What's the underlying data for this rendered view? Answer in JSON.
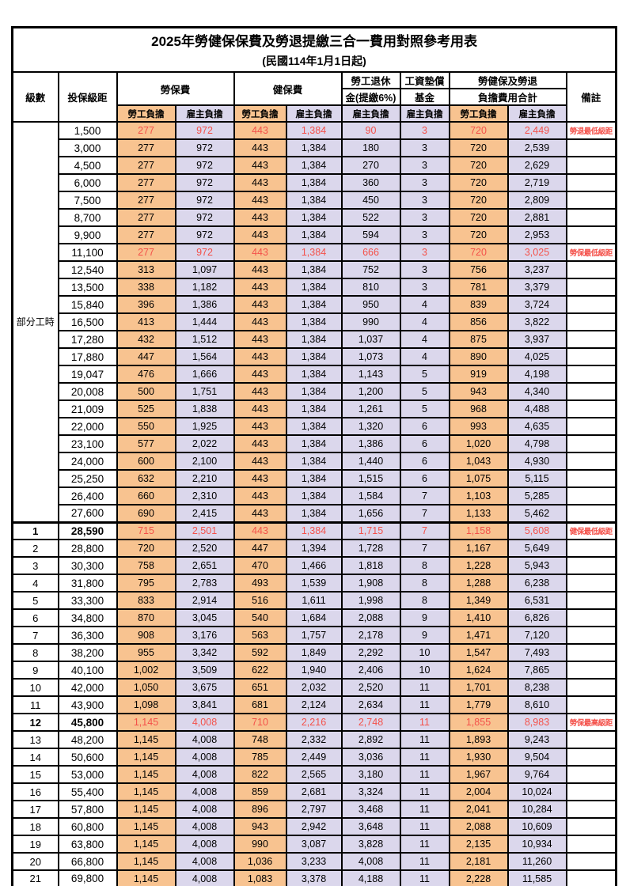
{
  "title": "2025年勞健保保費及勞退提繳三合一費用對照參考用表",
  "subtitle": "(民國114年1月1日起)",
  "colors": {
    "employee_column_bg": "#F8C390",
    "employer_column_bg": "#DBD7EC",
    "highlight_text": "#F4514A",
    "border": "#000000"
  },
  "header": {
    "level": "級數",
    "bracket": "投保級距",
    "labor_fee": "勞保費",
    "health_fee": "健保費",
    "pension_line1": "勞工退休",
    "pension_line2": "金(提繳6%)",
    "wage_fund_line1": "工資墊償",
    "wage_fund_line2": "基金",
    "total_line1": "勞健保及勞退",
    "total_line2": "負擔費用合計",
    "remark": "備註",
    "employee_label": "勞工負擔",
    "employer_label": "雇主負擔"
  },
  "part_time_label": "部分工時",
  "part_time_row_count": 23,
  "table": {
    "rows": [
      {
        "level": "",
        "bracket": "1,500",
        "values": [
          "277",
          "972",
          "443",
          "1,384",
          "90",
          "3",
          "720",
          "2,449"
        ],
        "note": "勞退最低級距",
        "red": true,
        "bold": false,
        "section": false
      },
      {
        "level": "",
        "bracket": "3,000",
        "values": [
          "277",
          "972",
          "443",
          "1,384",
          "180",
          "3",
          "720",
          "2,539"
        ],
        "note": "",
        "red": false,
        "bold": false,
        "section": false
      },
      {
        "level": "",
        "bracket": "4,500",
        "values": [
          "277",
          "972",
          "443",
          "1,384",
          "270",
          "3",
          "720",
          "2,629"
        ],
        "note": "",
        "red": false,
        "bold": false,
        "section": false
      },
      {
        "level": "",
        "bracket": "6,000",
        "values": [
          "277",
          "972",
          "443",
          "1,384",
          "360",
          "3",
          "720",
          "2,719"
        ],
        "note": "",
        "red": false,
        "bold": false,
        "section": false
      },
      {
        "level": "",
        "bracket": "7,500",
        "values": [
          "277",
          "972",
          "443",
          "1,384",
          "450",
          "3",
          "720",
          "2,809"
        ],
        "note": "",
        "red": false,
        "bold": false,
        "section": false
      },
      {
        "level": "",
        "bracket": "8,700",
        "values": [
          "277",
          "972",
          "443",
          "1,384",
          "522",
          "3",
          "720",
          "2,881"
        ],
        "note": "",
        "red": false,
        "bold": false,
        "section": false
      },
      {
        "level": "",
        "bracket": "9,900",
        "values": [
          "277",
          "972",
          "443",
          "1,384",
          "594",
          "3",
          "720",
          "2,953"
        ],
        "note": "",
        "red": false,
        "bold": false,
        "section": false
      },
      {
        "level": "",
        "bracket": "11,100",
        "values": [
          "277",
          "972",
          "443",
          "1,384",
          "666",
          "3",
          "720",
          "3,025"
        ],
        "note": "勞保最低級距",
        "red": true,
        "bold": false,
        "section": false
      },
      {
        "level": "",
        "bracket": "12,540",
        "values": [
          "313",
          "1,097",
          "443",
          "1,384",
          "752",
          "3",
          "756",
          "3,237"
        ],
        "note": "",
        "red": false,
        "bold": false,
        "section": false
      },
      {
        "level": "",
        "bracket": "13,500",
        "values": [
          "338",
          "1,182",
          "443",
          "1,384",
          "810",
          "3",
          "781",
          "3,379"
        ],
        "note": "",
        "red": false,
        "bold": false,
        "section": false
      },
      {
        "level": "",
        "bracket": "15,840",
        "values": [
          "396",
          "1,386",
          "443",
          "1,384",
          "950",
          "4",
          "839",
          "3,724"
        ],
        "note": "",
        "red": false,
        "bold": false,
        "section": false
      },
      {
        "level": "",
        "bracket": "16,500",
        "values": [
          "413",
          "1,444",
          "443",
          "1,384",
          "990",
          "4",
          "856",
          "3,822"
        ],
        "note": "",
        "red": false,
        "bold": false,
        "section": false
      },
      {
        "level": "",
        "bracket": "17,280",
        "values": [
          "432",
          "1,512",
          "443",
          "1,384",
          "1,037",
          "4",
          "875",
          "3,937"
        ],
        "note": "",
        "red": false,
        "bold": false,
        "section": false
      },
      {
        "level": "",
        "bracket": "17,880",
        "values": [
          "447",
          "1,564",
          "443",
          "1,384",
          "1,073",
          "4",
          "890",
          "4,025"
        ],
        "note": "",
        "red": false,
        "bold": false,
        "section": false
      },
      {
        "level": "",
        "bracket": "19,047",
        "values": [
          "476",
          "1,666",
          "443",
          "1,384",
          "1,143",
          "5",
          "919",
          "4,198"
        ],
        "note": "",
        "red": false,
        "bold": false,
        "section": false
      },
      {
        "level": "",
        "bracket": "20,008",
        "values": [
          "500",
          "1,751",
          "443",
          "1,384",
          "1,200",
          "5",
          "943",
          "4,340"
        ],
        "note": "",
        "red": false,
        "bold": false,
        "section": false
      },
      {
        "level": "",
        "bracket": "21,009",
        "values": [
          "525",
          "1,838",
          "443",
          "1,384",
          "1,261",
          "5",
          "968",
          "4,488"
        ],
        "note": "",
        "red": false,
        "bold": false,
        "section": false
      },
      {
        "level": "",
        "bracket": "22,000",
        "values": [
          "550",
          "1,925",
          "443",
          "1,384",
          "1,320",
          "6",
          "993",
          "4,635"
        ],
        "note": "",
        "red": false,
        "bold": false,
        "section": false
      },
      {
        "level": "",
        "bracket": "23,100",
        "values": [
          "577",
          "2,022",
          "443",
          "1,384",
          "1,386",
          "6",
          "1,020",
          "4,798"
        ],
        "note": "",
        "red": false,
        "bold": false,
        "section": false
      },
      {
        "level": "",
        "bracket": "24,000",
        "values": [
          "600",
          "2,100",
          "443",
          "1,384",
          "1,440",
          "6",
          "1,043",
          "4,930"
        ],
        "note": "",
        "red": false,
        "bold": false,
        "section": false
      },
      {
        "level": "",
        "bracket": "25,250",
        "values": [
          "632",
          "2,210",
          "443",
          "1,384",
          "1,515",
          "6",
          "1,075",
          "5,115"
        ],
        "note": "",
        "red": false,
        "bold": false,
        "section": false
      },
      {
        "level": "",
        "bracket": "26,400",
        "values": [
          "660",
          "2,310",
          "443",
          "1,384",
          "1,584",
          "7",
          "1,103",
          "5,285"
        ],
        "note": "",
        "red": false,
        "bold": false,
        "section": false
      },
      {
        "level": "",
        "bracket": "27,600",
        "values": [
          "690",
          "2,415",
          "443",
          "1,384",
          "1,656",
          "7",
          "1,133",
          "5,462"
        ],
        "note": "",
        "red": false,
        "bold": false,
        "section": false
      },
      {
        "level": "1",
        "bracket": "28,590",
        "values": [
          "715",
          "2,501",
          "443",
          "1,384",
          "1,715",
          "7",
          "1,158",
          "5,608"
        ],
        "note": "健保最低級距",
        "red": true,
        "bold": true,
        "section": true
      },
      {
        "level": "2",
        "bracket": "28,800",
        "values": [
          "720",
          "2,520",
          "447",
          "1,394",
          "1,728",
          "7",
          "1,167",
          "5,649"
        ],
        "note": "",
        "red": false,
        "bold": false,
        "section": false
      },
      {
        "level": "3",
        "bracket": "30,300",
        "values": [
          "758",
          "2,651",
          "470",
          "1,466",
          "1,818",
          "8",
          "1,228",
          "5,943"
        ],
        "note": "",
        "red": false,
        "bold": false,
        "section": false
      },
      {
        "level": "4",
        "bracket": "31,800",
        "values": [
          "795",
          "2,783",
          "493",
          "1,539",
          "1,908",
          "8",
          "1,288",
          "6,238"
        ],
        "note": "",
        "red": false,
        "bold": false,
        "section": false
      },
      {
        "level": "5",
        "bracket": "33,300",
        "values": [
          "833",
          "2,914",
          "516",
          "1,611",
          "1,998",
          "8",
          "1,349",
          "6,531"
        ],
        "note": "",
        "red": false,
        "bold": false,
        "section": false
      },
      {
        "level": "6",
        "bracket": "34,800",
        "values": [
          "870",
          "3,045",
          "540",
          "1,684",
          "2,088",
          "9",
          "1,410",
          "6,826"
        ],
        "note": "",
        "red": false,
        "bold": false,
        "section": false
      },
      {
        "level": "7",
        "bracket": "36,300",
        "values": [
          "908",
          "3,176",
          "563",
          "1,757",
          "2,178",
          "9",
          "1,471",
          "7,120"
        ],
        "note": "",
        "red": false,
        "bold": false,
        "section": false
      },
      {
        "level": "8",
        "bracket": "38,200",
        "values": [
          "955",
          "3,342",
          "592",
          "1,849",
          "2,292",
          "10",
          "1,547",
          "7,493"
        ],
        "note": "",
        "red": false,
        "bold": false,
        "section": false
      },
      {
        "level": "9",
        "bracket": "40,100",
        "values": [
          "1,002",
          "3,509",
          "622",
          "1,940",
          "2,406",
          "10",
          "1,624",
          "7,865"
        ],
        "note": "",
        "red": false,
        "bold": false,
        "section": false
      },
      {
        "level": "10",
        "bracket": "42,000",
        "values": [
          "1,050",
          "3,675",
          "651",
          "2,032",
          "2,520",
          "11",
          "1,701",
          "8,238"
        ],
        "note": "",
        "red": false,
        "bold": false,
        "section": false
      },
      {
        "level": "11",
        "bracket": "43,900",
        "values": [
          "1,098",
          "3,841",
          "681",
          "2,124",
          "2,634",
          "11",
          "1,779",
          "8,610"
        ],
        "note": "",
        "red": false,
        "bold": false,
        "section": false
      },
      {
        "level": "12",
        "bracket": "45,800",
        "values": [
          "1,145",
          "4,008",
          "710",
          "2,216",
          "2,748",
          "11",
          "1,855",
          "8,983"
        ],
        "note": "勞保最高級距",
        "red": true,
        "bold": true,
        "section": false
      },
      {
        "level": "13",
        "bracket": "48,200",
        "values": [
          "1,145",
          "4,008",
          "748",
          "2,332",
          "2,892",
          "11",
          "1,893",
          "9,243"
        ],
        "note": "",
        "red": false,
        "bold": false,
        "section": false
      },
      {
        "level": "14",
        "bracket": "50,600",
        "values": [
          "1,145",
          "4,008",
          "785",
          "2,449",
          "3,036",
          "11",
          "1,930",
          "9,504"
        ],
        "note": "",
        "red": false,
        "bold": false,
        "section": false
      },
      {
        "level": "15",
        "bracket": "53,000",
        "values": [
          "1,145",
          "4,008",
          "822",
          "2,565",
          "3,180",
          "11",
          "1,967",
          "9,764"
        ],
        "note": "",
        "red": false,
        "bold": false,
        "section": false
      },
      {
        "level": "16",
        "bracket": "55,400",
        "values": [
          "1,145",
          "4,008",
          "859",
          "2,681",
          "3,324",
          "11",
          "2,004",
          "10,024"
        ],
        "note": "",
        "red": false,
        "bold": false,
        "section": false
      },
      {
        "level": "17",
        "bracket": "57,800",
        "values": [
          "1,145",
          "4,008",
          "896",
          "2,797",
          "3,468",
          "11",
          "2,041",
          "10,284"
        ],
        "note": "",
        "red": false,
        "bold": false,
        "section": false
      },
      {
        "level": "18",
        "bracket": "60,800",
        "values": [
          "1,145",
          "4,008",
          "943",
          "2,942",
          "3,648",
          "11",
          "2,088",
          "10,609"
        ],
        "note": "",
        "red": false,
        "bold": false,
        "section": false
      },
      {
        "level": "19",
        "bracket": "63,800",
        "values": [
          "1,145",
          "4,008",
          "990",
          "3,087",
          "3,828",
          "11",
          "2,135",
          "10,934"
        ],
        "note": "",
        "red": false,
        "bold": false,
        "section": false
      },
      {
        "level": "20",
        "bracket": "66,800",
        "values": [
          "1,145",
          "4,008",
          "1,036",
          "3,233",
          "4,008",
          "11",
          "2,181",
          "11,260"
        ],
        "note": "",
        "red": false,
        "bold": false,
        "section": false
      },
      {
        "level": "21",
        "bracket": "69,800",
        "values": [
          "1,145",
          "4,008",
          "1,083",
          "3,378",
          "4,188",
          "11",
          "2,228",
          "11,585"
        ],
        "note": "",
        "red": false,
        "bold": false,
        "section": false
      }
    ],
    "value_column_types": [
      "emp",
      "er",
      "emp",
      "er",
      "er",
      "er",
      "emp",
      "er"
    ]
  }
}
